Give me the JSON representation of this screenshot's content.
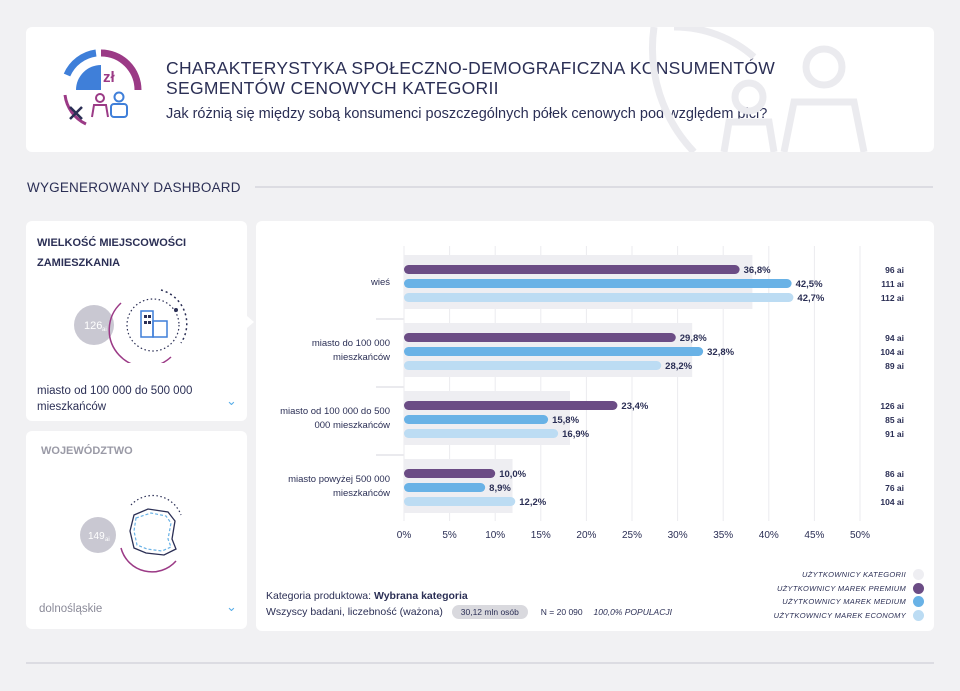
{
  "header": {
    "title": "CHARAKTERYSTYKA SPOŁECZNO-DEMOGRAFICZNA KONSUMENTÓW SEGMENTÓW CENOWYCH KATEGORII",
    "subtitle": "Jak różnią się między sobą konsumenci poszczególnych półek cenowych pod względem płci?",
    "logo_text": "zł"
  },
  "section": {
    "label": "WYGENEROWANY DASHBOARD"
  },
  "filters": [
    {
      "title": "WIELKOŚĆ MIEJSCOWOŚCI ZAMIESZKANIA",
      "index": "126",
      "index_sub": "ai",
      "value": "miasto od 100 000 do 500 000 mieszkańców",
      "active": true
    },
    {
      "title": "WOJEWÓDZTWO",
      "index": "149",
      "index_sub": "ai",
      "value": "dolnośląskie",
      "active": false
    }
  ],
  "footer": {
    "category_label": "Kategoria produktowa:",
    "category_value": "Wybrana kategoria",
    "base_label": "Wszyscy badani, liczebność (ważona)",
    "population_pill": "30,12 mln osób",
    "n_count": "N = 20 090",
    "population_pct": "100,0% POPULACJI"
  },
  "colors": {
    "category": "#eeeef2",
    "premium": "#6b4c85",
    "medium": "#69b2e6",
    "economy": "#bcdcf3",
    "text": "#2b2f55"
  },
  "chart_data": {
    "type": "bar",
    "orientation": "horizontal",
    "categories": [
      "wieś",
      "miasto do 100 000 mieszkańców",
      "miasto od 100 000 do 500 000 mieszkańców",
      "miasto powyżej 500 000 mieszkańców"
    ],
    "category_lines": [
      [
        "wieś"
      ],
      [
        "miasto do 100 000",
        "mieszkańców"
      ],
      [
        "miasto od 100 000 do 500",
        "000 mieszkańców"
      ],
      [
        "miasto powyżej 500 000",
        "mieszkańców"
      ]
    ],
    "series": [
      {
        "name": "UŻYTKOWNICY KATEGORII",
        "values": [
          38.2,
          31.6,
          18.2,
          11.9
        ],
        "labels": [
          "",
          "",
          "",
          ""
        ],
        "indices": [
          "",
          "",
          "",
          ""
        ]
      },
      {
        "name": "UŻYTKOWNICY MAREK PREMIUM",
        "values": [
          36.8,
          29.8,
          23.4,
          10.0
        ],
        "labels": [
          "36,8%",
          "29,8%",
          "23,4%",
          "10,0%"
        ],
        "indices": [
          "96 ai",
          "94 ai",
          "126 ai",
          "86 ai"
        ]
      },
      {
        "name": "UŻYTKOWNICY MAREK MEDIUM",
        "values": [
          42.5,
          32.8,
          15.8,
          8.9
        ],
        "labels": [
          "42,5%",
          "32,8%",
          "15,8%",
          "8,9%"
        ],
        "indices": [
          "111 ai",
          "104 ai",
          "85 ai",
          "76 ai"
        ]
      },
      {
        "name": "UŻYTKOWNICY MAREK ECONOMY",
        "values": [
          42.7,
          28.2,
          16.9,
          12.2
        ],
        "labels": [
          "42,7%",
          "28,2%",
          "16,9%",
          "12,2%"
        ],
        "indices": [
          "112 ai",
          "89 ai",
          "91 ai",
          "104 ai"
        ]
      }
    ],
    "xlim": [
      0,
      50
    ],
    "ticks": [
      0,
      5,
      10,
      15,
      20,
      25,
      30,
      35,
      40,
      45,
      50
    ],
    "tick_labels": [
      "0%",
      "5%",
      "10%",
      "15%",
      "20%",
      "25%",
      "30%",
      "35%",
      "40%",
      "45%",
      "50%"
    ],
    "grid": true,
    "legend_position": "bottom-right"
  }
}
